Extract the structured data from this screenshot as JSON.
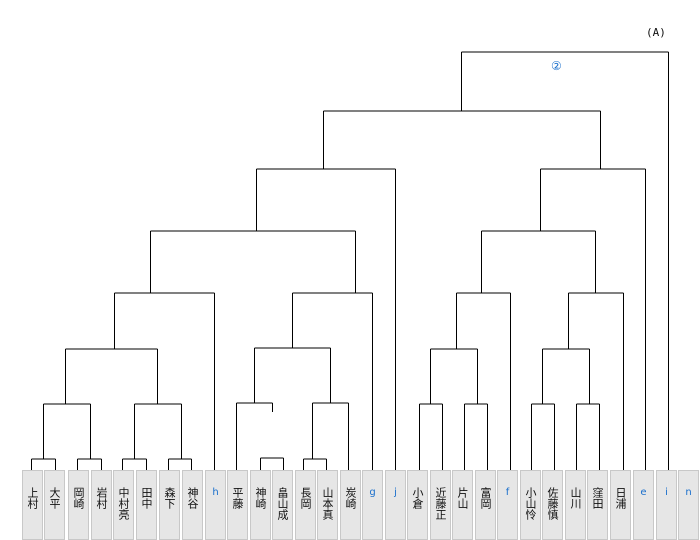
{
  "diagram": {
    "type": "tournament-bracket",
    "corner_label": "(A)",
    "round_label": "②",
    "line_color": "#000000",
    "cell_color": "#e6e6e6",
    "link_color": "#1a6fcc"
  },
  "entries": [
    {
      "id": "uemura",
      "text": "上村",
      "kind": "name"
    },
    {
      "id": "ohira",
      "text": "大平",
      "kind": "name"
    },
    {
      "id": "okazaki",
      "text": "岡崎",
      "kind": "name"
    },
    {
      "id": "iwamura",
      "text": "岩村",
      "kind": "name"
    },
    {
      "id": "nakamura",
      "text": "中村亮",
      "kind": "name"
    },
    {
      "id": "tanaka",
      "text": "田中",
      "kind": "name"
    },
    {
      "id": "morishita",
      "text": "森下",
      "kind": "name"
    },
    {
      "id": "kamiya",
      "text": "神谷",
      "kind": "name"
    },
    {
      "id": "h",
      "text": "h",
      "kind": "link"
    },
    {
      "id": "hirafuji",
      "text": "平藤",
      "kind": "name"
    },
    {
      "id": "kanzaki",
      "text": "神崎",
      "kind": "name"
    },
    {
      "id": "hatayama",
      "text": "畠山成",
      "kind": "name"
    },
    {
      "id": "nagaoka",
      "text": "長岡",
      "kind": "name"
    },
    {
      "id": "yamamoto",
      "text": "山本真",
      "kind": "name"
    },
    {
      "id": "sumizaki",
      "text": "炭崎",
      "kind": "name"
    },
    {
      "id": "g",
      "text": "g",
      "kind": "link"
    },
    {
      "id": "j",
      "text": "j",
      "kind": "link"
    },
    {
      "id": "ogura",
      "text": "小倉",
      "kind": "name"
    },
    {
      "id": "kondo",
      "text": "近藤正",
      "kind": "name"
    },
    {
      "id": "katayama",
      "text": "片山",
      "kind": "name"
    },
    {
      "id": "tomioka",
      "text": "富岡",
      "kind": "name"
    },
    {
      "id": "f",
      "text": "f",
      "kind": "link"
    },
    {
      "id": "koyama",
      "text": "小山怜",
      "kind": "name"
    },
    {
      "id": "sato",
      "text": "佐藤慎",
      "kind": "name"
    },
    {
      "id": "yamakawa",
      "text": "山川",
      "kind": "name"
    },
    {
      "id": "kubota",
      "text": "窪田",
      "kind": "name"
    },
    {
      "id": "hiura",
      "text": "日浦",
      "kind": "name"
    },
    {
      "id": "e",
      "text": "e",
      "kind": "link"
    },
    {
      "id": "i",
      "text": "i",
      "kind": "link"
    },
    {
      "id": "n",
      "text": "n",
      "kind": "link"
    }
  ]
}
